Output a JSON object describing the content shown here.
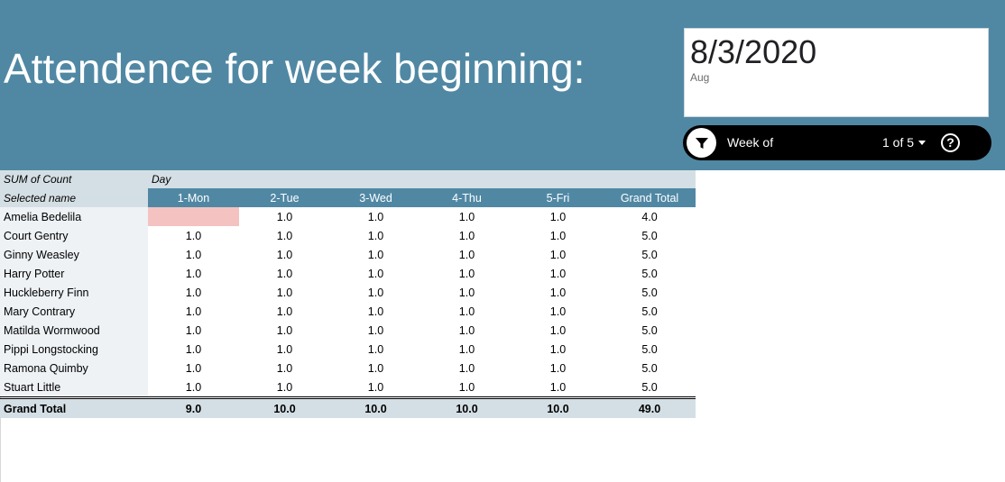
{
  "header": {
    "title": "Attendence for week beginning:",
    "date_value": "8/3/2020",
    "date_sub": "Aug"
  },
  "filter": {
    "label": "Week of",
    "count": "1 of 5",
    "icon": "filter-funnel-icon",
    "help_icon": "help-icon",
    "help_glyph": "?"
  },
  "pivot": {
    "corner_top": "SUM of Count",
    "column_group": "Day",
    "corner_bottom": "Selected name",
    "columns": [
      "1-Mon",
      "2-Tue",
      "3-Wed",
      "4-Thu",
      "5-Fri",
      "Grand Total"
    ],
    "rows": [
      {
        "name": "Amelia Bedelila",
        "values": [
          "",
          "1.0",
          "1.0",
          "1.0",
          "1.0",
          "4.0"
        ]
      },
      {
        "name": "Court Gentry",
        "values": [
          "1.0",
          "1.0",
          "1.0",
          "1.0",
          "1.0",
          "5.0"
        ]
      },
      {
        "name": "Ginny Weasley",
        "values": [
          "1.0",
          "1.0",
          "1.0",
          "1.0",
          "1.0",
          "5.0"
        ]
      },
      {
        "name": "Harry Potter",
        "values": [
          "1.0",
          "1.0",
          "1.0",
          "1.0",
          "1.0",
          "5.0"
        ]
      },
      {
        "name": "Huckleberry Finn",
        "values": [
          "1.0",
          "1.0",
          "1.0",
          "1.0",
          "1.0",
          "5.0"
        ]
      },
      {
        "name": "Mary Contrary",
        "values": [
          "1.0",
          "1.0",
          "1.0",
          "1.0",
          "1.0",
          "5.0"
        ]
      },
      {
        "name": "Matilda Wormwood",
        "values": [
          "1.0",
          "1.0",
          "1.0",
          "1.0",
          "1.0",
          "5.0"
        ]
      },
      {
        "name": "Pippi Longstocking",
        "values": [
          "1.0",
          "1.0",
          "1.0",
          "1.0",
          "1.0",
          "5.0"
        ]
      },
      {
        "name": "Ramona Quimby",
        "values": [
          "1.0",
          "1.0",
          "1.0",
          "1.0",
          "1.0",
          "5.0"
        ]
      },
      {
        "name": "Stuart Little",
        "values": [
          "1.0",
          "1.0",
          "1.0",
          "1.0",
          "1.0",
          "5.0"
        ]
      }
    ],
    "total": {
      "label": "Grand Total",
      "values": [
        "9.0",
        "10.0",
        "10.0",
        "10.0",
        "10.0",
        "49.0"
      ]
    }
  },
  "colors": {
    "banner": "#5088a4",
    "header_light": "#d4dfe5",
    "row_label_bg": "#eef2f5",
    "missing_highlight": "#f4c2c0"
  }
}
